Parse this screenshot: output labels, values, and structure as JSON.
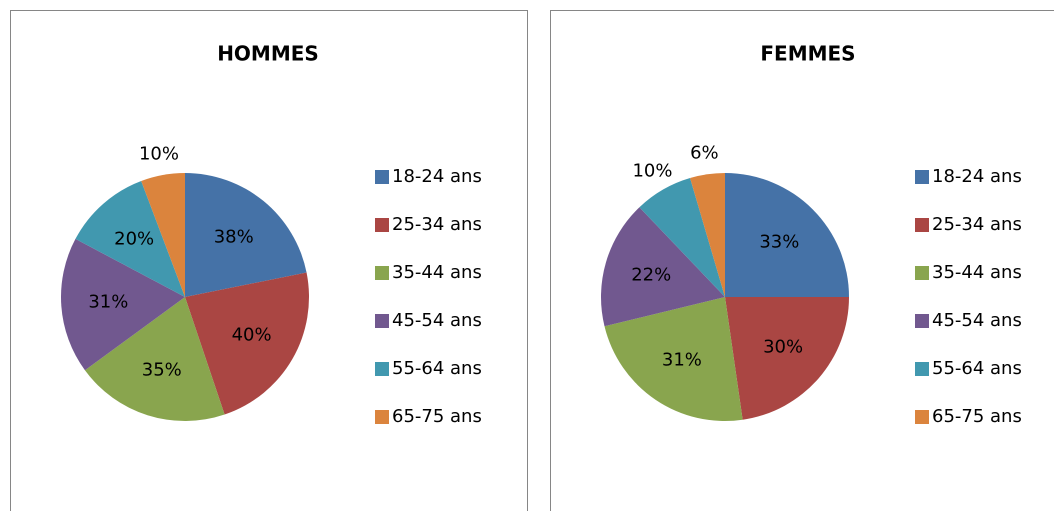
{
  "chart_data": [
    {
      "type": "pie",
      "title": "HOMMES",
      "categories": [
        "18-24 ans",
        "25-34 ans",
        "35-44 ans",
        "45-54 ans",
        "55-64 ans",
        "65-75 ans"
      ],
      "values": [
        38,
        40,
        35,
        31,
        20,
        10
      ],
      "value_labels": [
        "38%",
        "40%",
        "35%",
        "31%",
        "20%",
        "10%"
      ],
      "colors": [
        "#4572a7",
        "#aa4643",
        "#89a54e",
        "#71588f",
        "#4198af",
        "#db843d"
      ],
      "legend": "right"
    },
    {
      "type": "pie",
      "title": "FEMMES",
      "categories": [
        "18-24 ans",
        "25-34 ans",
        "35-44 ans",
        "45-54 ans",
        "55-64 ans",
        "65-75 ans"
      ],
      "values": [
        33,
        30,
        31,
        22,
        10,
        6
      ],
      "value_labels": [
        "33%",
        "30%",
        "31%",
        "22%",
        "10%",
        "6%"
      ],
      "colors": [
        "#4572a7",
        "#aa4643",
        "#89a54e",
        "#71588f",
        "#4198af",
        "#db843d"
      ],
      "legend": "right"
    }
  ]
}
